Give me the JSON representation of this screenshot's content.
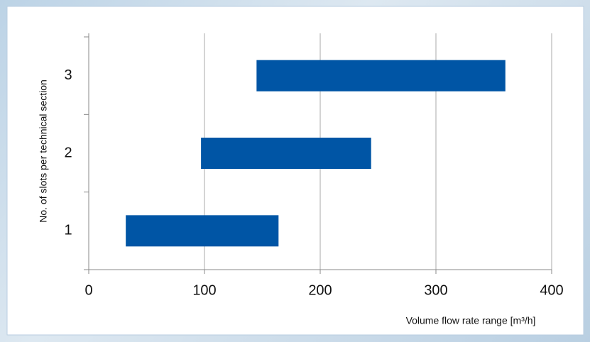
{
  "chart_data": {
    "type": "range-bar",
    "orientation": "horizontal",
    "x_label": "Volume flow rate range [m³/h]",
    "y_label": "No. of slots per technical section",
    "categories": [
      "1",
      "2",
      "3"
    ],
    "starts": [
      32,
      97,
      145
    ],
    "ends": [
      164,
      244,
      360
    ],
    "color": "#0055a5",
    "xlim": [
      0,
      400
    ],
    "xticks": [
      0,
      100,
      200,
      300,
      400
    ],
    "grid": true
  }
}
